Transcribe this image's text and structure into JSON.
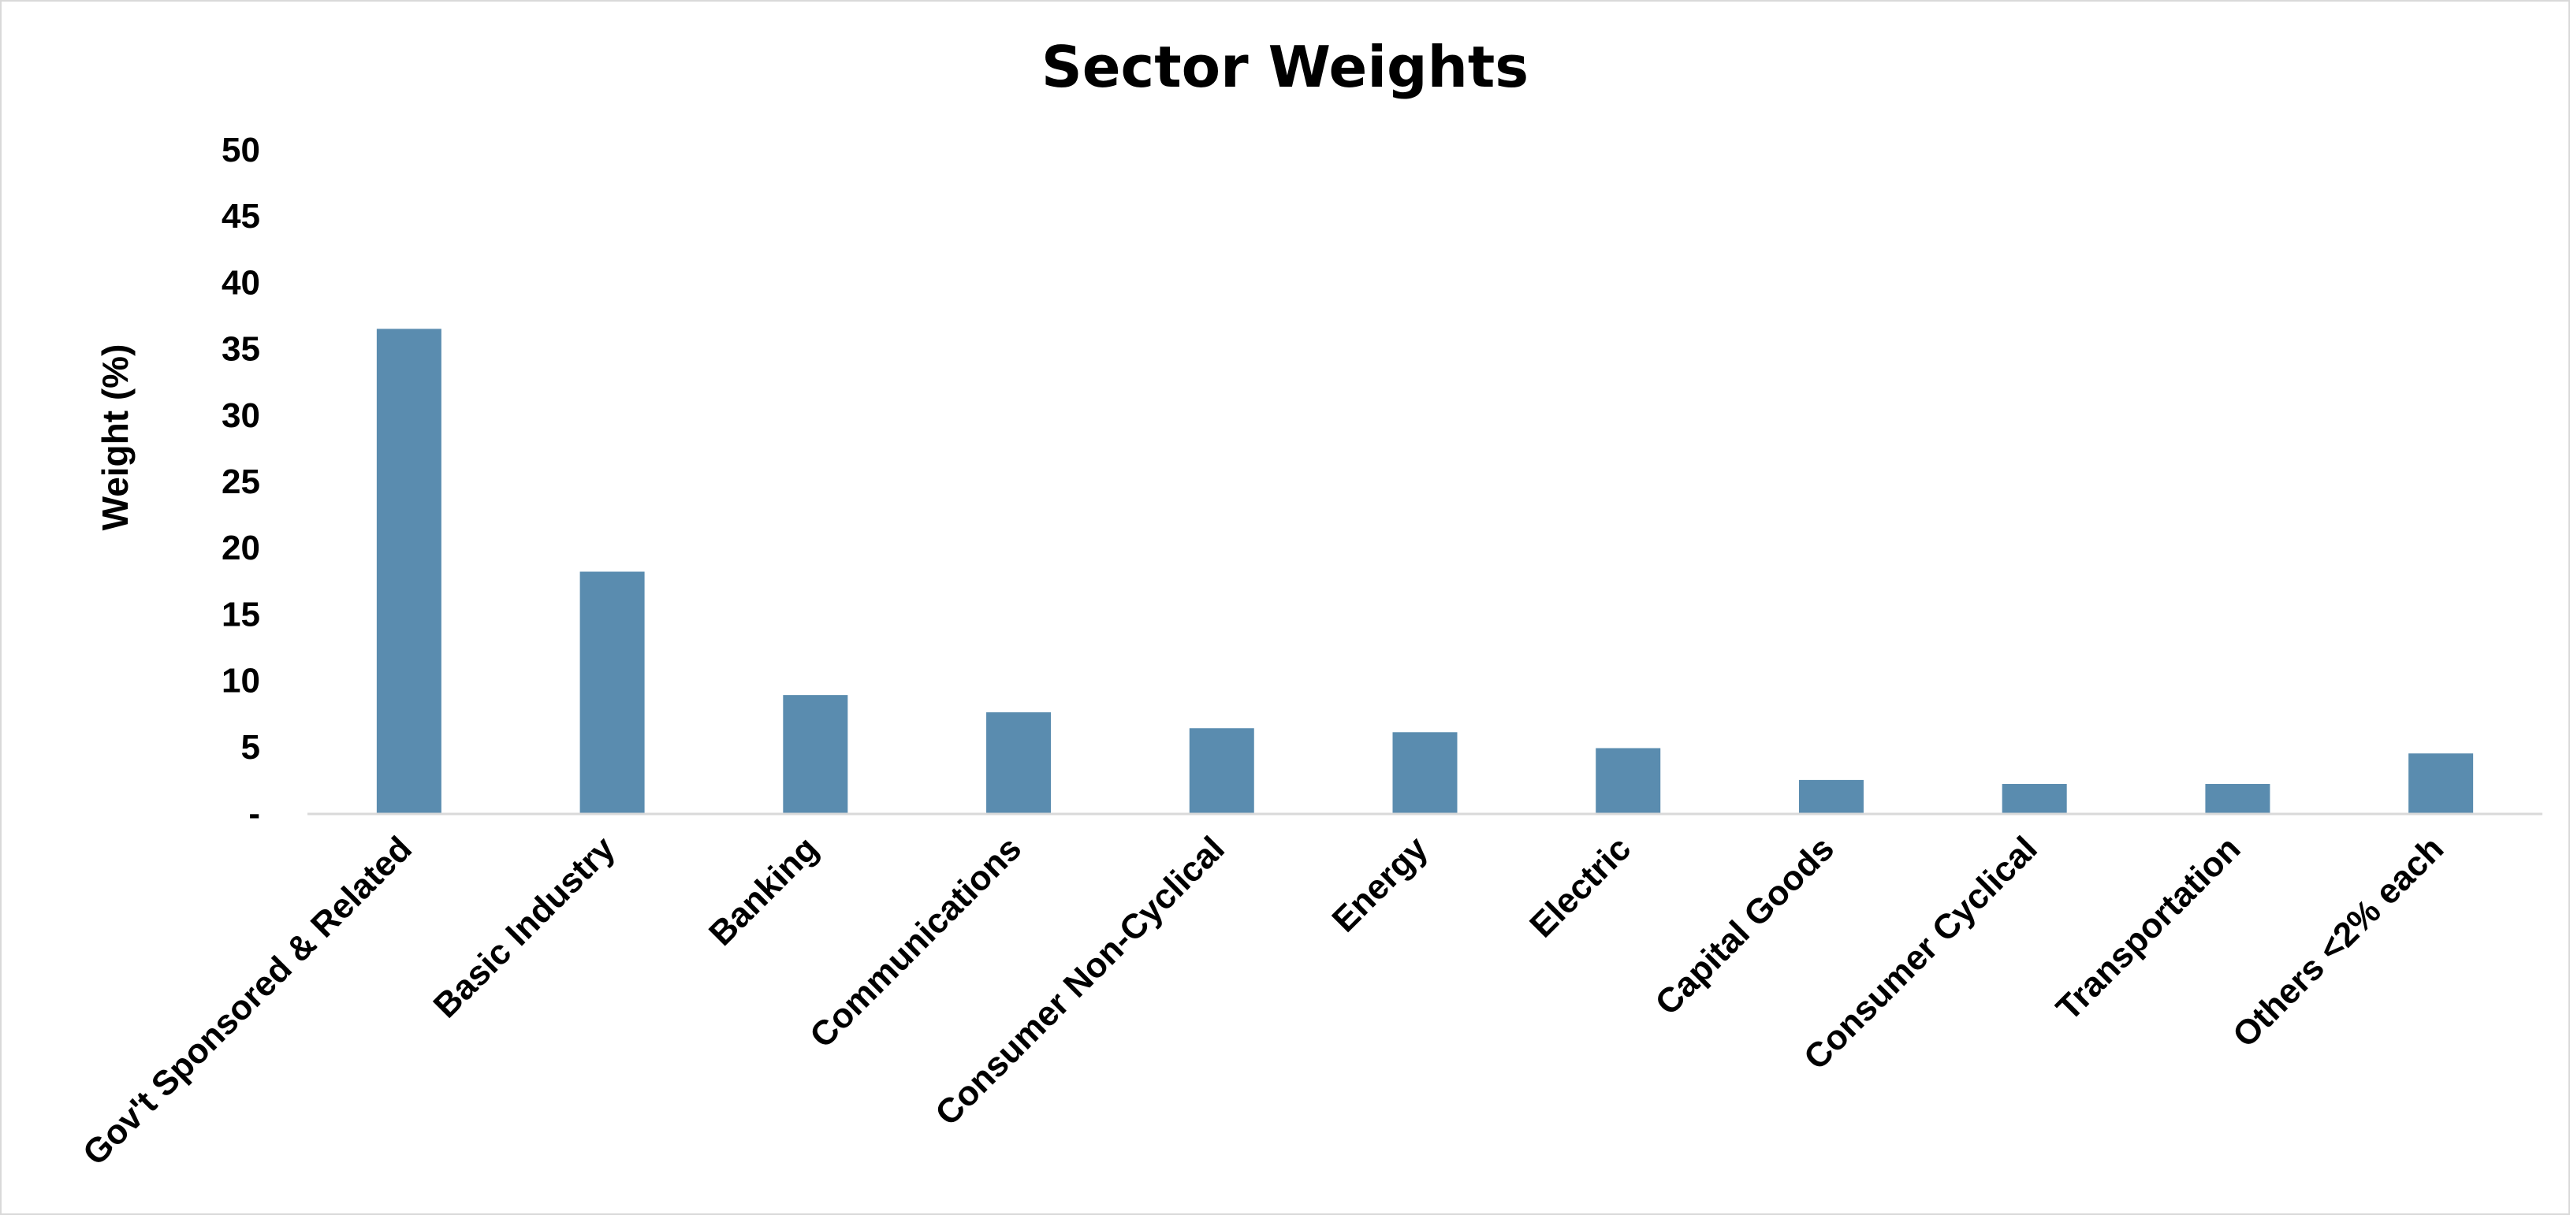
{
  "chart_data": {
    "type": "bar",
    "title": "Sector Weights",
    "xlabel": "",
    "ylabel": "Weight (%)",
    "ylim": [
      0,
      50
    ],
    "yticks": [
      {
        "value": 0,
        "label": "-"
      },
      {
        "value": 5,
        "label": "5"
      },
      {
        "value": 10,
        "label": "10"
      },
      {
        "value": 15,
        "label": "15"
      },
      {
        "value": 20,
        "label": "20"
      },
      {
        "value": 25,
        "label": "25"
      },
      {
        "value": 30,
        "label": "30"
      },
      {
        "value": 35,
        "label": "35"
      },
      {
        "value": 40,
        "label": "40"
      },
      {
        "value": 45,
        "label": "45"
      },
      {
        "value": 50,
        "label": "50"
      }
    ],
    "categories": [
      "Gov't Sponsored & Related",
      "Basic Industry",
      "Banking",
      "Communications",
      "Consumer Non-Cyclical",
      "Energy",
      "Electric",
      "Capital Goods",
      "Consumer Cyclical",
      "Transportation",
      "Others <2% each"
    ],
    "values": [
      36.5,
      18.2,
      8.9,
      7.6,
      6.4,
      6.1,
      4.9,
      2.5,
      2.2,
      2.2,
      4.5
    ],
    "grid": false,
    "legend": "none",
    "bar_color": "#5a8caf",
    "axis_color": "#d9d9d9"
  }
}
